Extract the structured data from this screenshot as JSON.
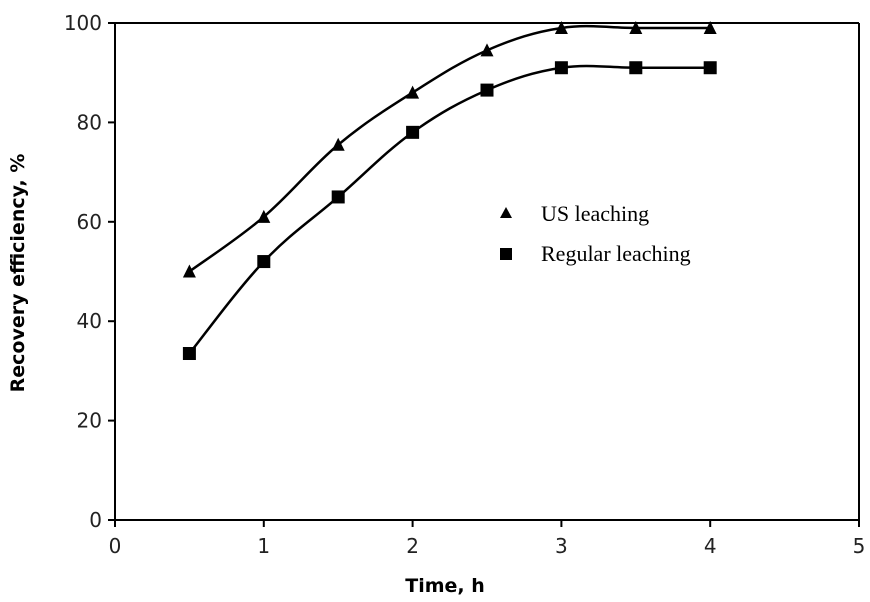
{
  "chart_data": {
    "type": "line",
    "xlabel": "Time, h",
    "ylabel": "Recovery efficiency, %",
    "xlim": [
      0,
      5
    ],
    "ylim": [
      0,
      100
    ],
    "xticks": [
      "0",
      "1",
      "2",
      "3",
      "4",
      "5"
    ],
    "yticks": [
      "0",
      "20",
      "40",
      "60",
      "80",
      "100"
    ],
    "grid": false,
    "legend_position": "center-right",
    "series": [
      {
        "name": "US leaching",
        "marker": "triangle",
        "color": "#000000",
        "x": [
          0.5,
          1.0,
          1.5,
          2.0,
          2.5,
          3.0,
          3.5,
          4.0
        ],
        "y": [
          50,
          61,
          75.5,
          86,
          94.5,
          99,
          99,
          99
        ]
      },
      {
        "name": "Regular leaching",
        "marker": "square",
        "color": "#000000",
        "x": [
          0.5,
          1.0,
          1.5,
          2.0,
          2.5,
          3.0,
          3.5,
          4.0
        ],
        "y": [
          33.5,
          52,
          65,
          78,
          86.5,
          91,
          91,
          91
        ]
      }
    ]
  }
}
